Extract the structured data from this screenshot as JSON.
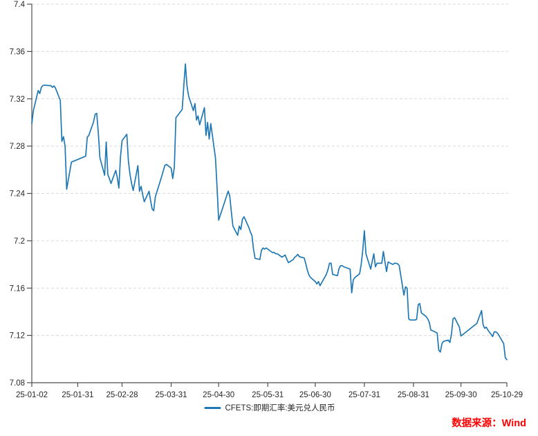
{
  "chart_data": {
    "type": "line",
    "title": "",
    "xlabel": "",
    "ylabel": "",
    "ylim": [
      7.08,
      7.4
    ],
    "x_total_days": 300,
    "grid": "horizontal-dashed",
    "legend_position": "bottom-center",
    "y_ticks": [
      7.08,
      7.12,
      7.16,
      7.2,
      7.24,
      7.28,
      7.32,
      7.36,
      7.4
    ],
    "y_tick_labels": [
      "7.08",
      "7.12",
      "7.16",
      "7.2",
      "7.24",
      "7.28",
      "7.32",
      "7.36",
      "7.4"
    ],
    "x_ticks": [
      {
        "date": "01-02",
        "label": "25-01-02"
      },
      {
        "date": "01-31",
        "label": "25-01-31"
      },
      {
        "date": "02-28",
        "label": "25-02-28"
      },
      {
        "date": "03-31",
        "label": "25-03-31"
      },
      {
        "date": "04-30",
        "label": "25-04-30"
      },
      {
        "date": "05-31",
        "label": "25-05-31"
      },
      {
        "date": "06-30",
        "label": "25-06-30"
      },
      {
        "date": "07-31",
        "label": "25-07-31"
      },
      {
        "date": "08-31",
        "label": "25-08-31"
      },
      {
        "date": "09-30",
        "label": "25-09-30"
      },
      {
        "date": "10-29",
        "label": "25-10-29"
      }
    ],
    "series": [
      {
        "name": "CFETS:即期汇率:美元兑人民币",
        "color": "#1f77b4",
        "dates": [
          "01-02",
          "01-03",
          "01-06",
          "01-07",
          "01-08",
          "01-09",
          "01-10",
          "01-13",
          "01-14",
          "01-15",
          "01-16",
          "01-17",
          "01-20",
          "01-21",
          "01-22",
          "01-23",
          "01-24",
          "01-27",
          "02-05",
          "02-06",
          "02-07",
          "02-10",
          "02-11",
          "02-12",
          "02-13",
          "02-14",
          "02-17",
          "02-18",
          "02-19",
          "02-20",
          "02-21",
          "02-24",
          "02-25",
          "02-26",
          "02-27",
          "02-28",
          "03-03",
          "03-04",
          "03-05",
          "03-06",
          "03-07",
          "03-10",
          "03-11",
          "03-12",
          "03-13",
          "03-14",
          "03-17",
          "03-18",
          "03-19",
          "03-20",
          "03-21",
          "03-24",
          "03-25",
          "03-26",
          "03-27",
          "03-28",
          "03-31",
          "04-01",
          "04-02",
          "04-03",
          "04-07",
          "04-08",
          "04-09",
          "04-10",
          "04-11",
          "04-14",
          "04-15",
          "04-16",
          "04-17",
          "04-18",
          "04-21",
          "04-22",
          "04-23",
          "04-24",
          "04-25",
          "04-28",
          "04-29",
          "04-30",
          "05-06",
          "05-07",
          "05-08",
          "05-09",
          "05-12",
          "05-13",
          "05-14",
          "05-15",
          "05-16",
          "05-19",
          "05-20",
          "05-21",
          "05-22",
          "05-23",
          "05-26",
          "05-27",
          "05-28",
          "05-29",
          "05-30",
          "06-03",
          "06-04",
          "06-05",
          "06-06",
          "06-09",
          "06-10",
          "06-11",
          "06-12",
          "06-13",
          "06-16",
          "06-17",
          "06-18",
          "06-19",
          "06-20",
          "06-23",
          "06-24",
          "06-25",
          "06-26",
          "06-27",
          "06-30",
          "07-01",
          "07-02",
          "07-03",
          "07-04",
          "07-07",
          "07-08",
          "07-09",
          "07-10",
          "07-11",
          "07-14",
          "07-15",
          "07-16",
          "07-17",
          "07-18",
          "07-21",
          "07-22",
          "07-23",
          "07-24",
          "07-25",
          "07-28",
          "07-29",
          "07-30",
          "07-31",
          "08-01",
          "08-04",
          "08-05",
          "08-06",
          "08-07",
          "08-08",
          "08-11",
          "08-12",
          "08-13",
          "08-14",
          "08-15",
          "08-18",
          "08-19",
          "08-20",
          "08-21",
          "08-22",
          "08-25",
          "08-26",
          "08-27",
          "08-28",
          "08-29",
          "09-01",
          "09-02",
          "09-03",
          "09-04",
          "09-05",
          "09-08",
          "09-09",
          "09-10",
          "09-11",
          "09-12",
          "09-15",
          "09-16",
          "09-17",
          "09-18",
          "09-19",
          "09-22",
          "09-23",
          "09-24",
          "09-25",
          "09-26",
          "09-29",
          "09-30",
          "10-09",
          "10-10",
          "10-13",
          "10-14",
          "10-15",
          "10-16",
          "10-17",
          "10-20",
          "10-21",
          "10-22",
          "10-23",
          "10-24",
          "10-27",
          "10-28",
          "10-29"
        ],
        "values": [
          7.299,
          7.31,
          7.327,
          7.3245,
          7.3295,
          7.3312,
          7.3315,
          7.3312,
          7.3312,
          7.3297,
          7.3309,
          7.329,
          7.3187,
          7.284,
          7.288,
          7.28,
          7.2435,
          7.2665,
          7.2715,
          7.2875,
          7.289,
          7.3005,
          7.307,
          7.3077,
          7.291,
          7.27,
          7.2554,
          7.2835,
          7.256,
          7.2525,
          7.2484,
          7.2595,
          7.2531,
          7.2445,
          7.2707,
          7.2846,
          7.29,
          7.2672,
          7.256,
          7.2484,
          7.2425,
          7.2635,
          7.2418,
          7.246,
          7.239,
          7.233,
          7.2418,
          7.234,
          7.227,
          7.2254,
          7.2371,
          7.25,
          7.2544,
          7.259,
          7.2637,
          7.2645,
          7.2614,
          7.2526,
          7.262,
          7.304,
          7.311,
          7.331,
          7.3495,
          7.331,
          7.3225,
          7.31,
          7.316,
          7.302,
          7.3055,
          7.298,
          7.3125,
          7.289,
          7.3,
          7.286,
          7.299,
          7.27,
          7.245,
          7.2174,
          7.242,
          7.2377,
          7.2246,
          7.2124,
          7.2046,
          7.2124,
          7.2095,
          7.2183,
          7.2203,
          7.2114,
          7.2075,
          7.2046,
          7.1929,
          7.1851,
          7.1842,
          7.192,
          7.1939,
          7.1929,
          7.1939,
          7.19,
          7.1902,
          7.189,
          7.189,
          7.1862,
          7.187,
          7.188,
          7.1845,
          7.1815,
          7.184,
          7.186,
          7.187,
          7.1885,
          7.1865,
          7.1855,
          7.1805,
          7.175,
          7.171,
          7.169,
          7.1655,
          7.1635,
          7.1655,
          7.162,
          7.1645,
          7.1715,
          7.1755,
          7.181,
          7.181,
          7.1715,
          7.1705,
          7.1765,
          7.179,
          7.179,
          7.178,
          7.1765,
          7.176,
          7.156,
          7.167,
          7.169,
          7.172,
          7.18,
          7.192,
          7.2085,
          7.189,
          7.176,
          7.183,
          7.189,
          7.178,
          7.181,
          7.181,
          7.191,
          7.182,
          7.174,
          7.182,
          7.18,
          7.181,
          7.181,
          7.1805,
          7.179,
          7.154,
          7.161,
          7.16,
          7.134,
          7.133,
          7.133,
          7.1335,
          7.146,
          7.147,
          7.139,
          7.136,
          7.134,
          7.131,
          7.1245,
          7.124,
          7.122,
          7.1075,
          7.106,
          7.113,
          7.115,
          7.116,
          7.114,
          7.121,
          7.134,
          7.135,
          7.127,
          7.1195,
          7.129,
          7.13,
          7.141,
          7.129,
          7.126,
          7.127,
          7.1245,
          7.119,
          7.123,
          7.123,
          7.122,
          7.12,
          7.113,
          7.101,
          7.0995
        ]
      }
    ]
  },
  "legend": {
    "label": "CFETS:即期汇率:美元兑人民币"
  },
  "source_note": {
    "text": "数据来源：Wind",
    "color": "#ff0000"
  },
  "axis": {
    "line_color": "#4d4d4d",
    "text_color": "#262626",
    "grid_color": "#d9d9d9"
  }
}
